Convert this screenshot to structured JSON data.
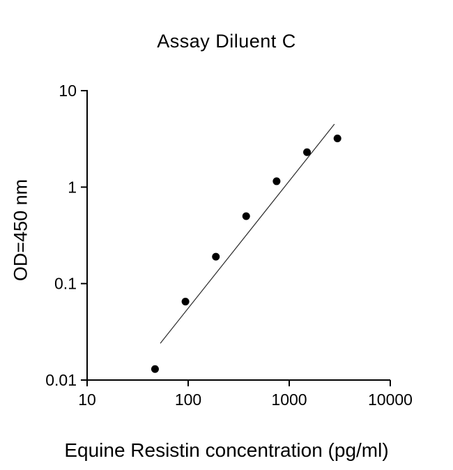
{
  "title": "Assay Diluent C",
  "chart_data": {
    "type": "scatter",
    "title": "Assay Diluent C",
    "xlabel": "Equine Resistin concentration (pg/ml)",
    "ylabel": "OD=450 nm",
    "xscale": "log",
    "yscale": "log",
    "xlim": [
      10,
      10000
    ],
    "ylim": [
      0.01,
      10
    ],
    "x_ticks": [
      10,
      100,
      1000,
      10000
    ],
    "x_tick_labels": [
      "10",
      "100",
      "1000",
      "10000"
    ],
    "y_ticks": [
      0.01,
      0.1,
      1,
      10
    ],
    "y_tick_labels": [
      "0.01",
      "0.1",
      "1",
      "10"
    ],
    "grid": false,
    "legend": false,
    "marker": "circle",
    "marker_color": "#000000",
    "line_color": "#2a2a2a",
    "points": [
      {
        "x": 47,
        "y": 0.013
      },
      {
        "x": 94,
        "y": 0.065
      },
      {
        "x": 188,
        "y": 0.19
      },
      {
        "x": 375,
        "y": 0.5
      },
      {
        "x": 750,
        "y": 1.15
      },
      {
        "x": 1500,
        "y": 2.3
      },
      {
        "x": 3000,
        "y": 3.2
      }
    ],
    "trendline": {
      "x1": 53,
      "y1": 0.024,
      "x2": 2800,
      "y2": 4.5
    }
  }
}
